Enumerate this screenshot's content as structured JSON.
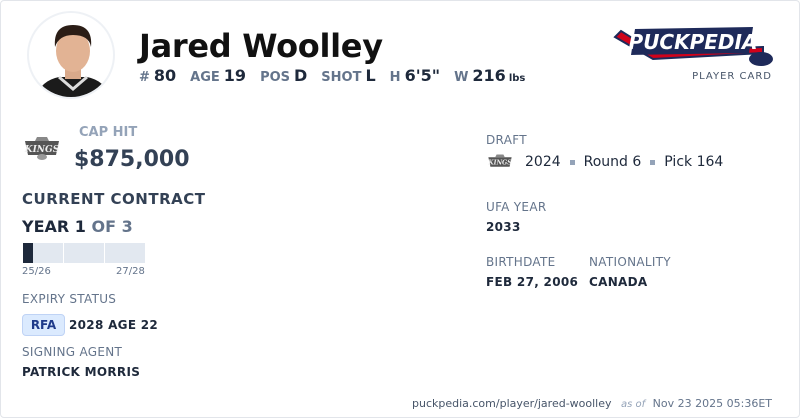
{
  "player": {
    "name": "Jared Woolley",
    "avatar": "player-headshot"
  },
  "stats": [
    {
      "label": "#",
      "value": "80"
    },
    {
      "label": "AGE",
      "value": "19"
    },
    {
      "label": "POS",
      "value": "D"
    },
    {
      "label": "SHOT",
      "value": "L"
    },
    {
      "label": "H",
      "value": "6'5\""
    },
    {
      "label": "W",
      "value": "216",
      "unit": "lbs"
    }
  ],
  "brand": {
    "logo_text": "PuckPedia",
    "subtitle": "PLAYER CARD",
    "colors": {
      "navy": "#1e2a5a",
      "red": "#d0021b"
    }
  },
  "team": {
    "logo_text": "KINGS"
  },
  "cap": {
    "label": "CAP HIT",
    "value": "$875,000"
  },
  "contract": {
    "title": "CURRENT CONTRACT",
    "year_label": "YEAR 1",
    "of_label": "OF 3",
    "start": "25/26",
    "end": "27/28",
    "total_years": 3,
    "current_year": 1,
    "progress_fraction": 0.08,
    "fill_color": "#1e293b"
  },
  "expiry": {
    "label": "EXPIRY STATUS",
    "badge": "RFA",
    "detail": "2028 AGE 22"
  },
  "agent": {
    "label": "SIGNING AGENT",
    "value": "PATRICK MORRIS"
  },
  "draft": {
    "label": "DRAFT",
    "year": "2024",
    "round": "Round 6",
    "pick": "Pick 164"
  },
  "ufa": {
    "label": "UFA YEAR",
    "value": "2033"
  },
  "birth": {
    "label": "BIRTHDATE",
    "value": "FEB 27, 2006"
  },
  "nationality": {
    "label": "NATIONALITY",
    "value": "CANADA"
  },
  "footer": {
    "url": "puckpedia.com/player/jared-woolley",
    "as_of": "as of",
    "timestamp": "Nov 23 2025 05:36ET"
  }
}
